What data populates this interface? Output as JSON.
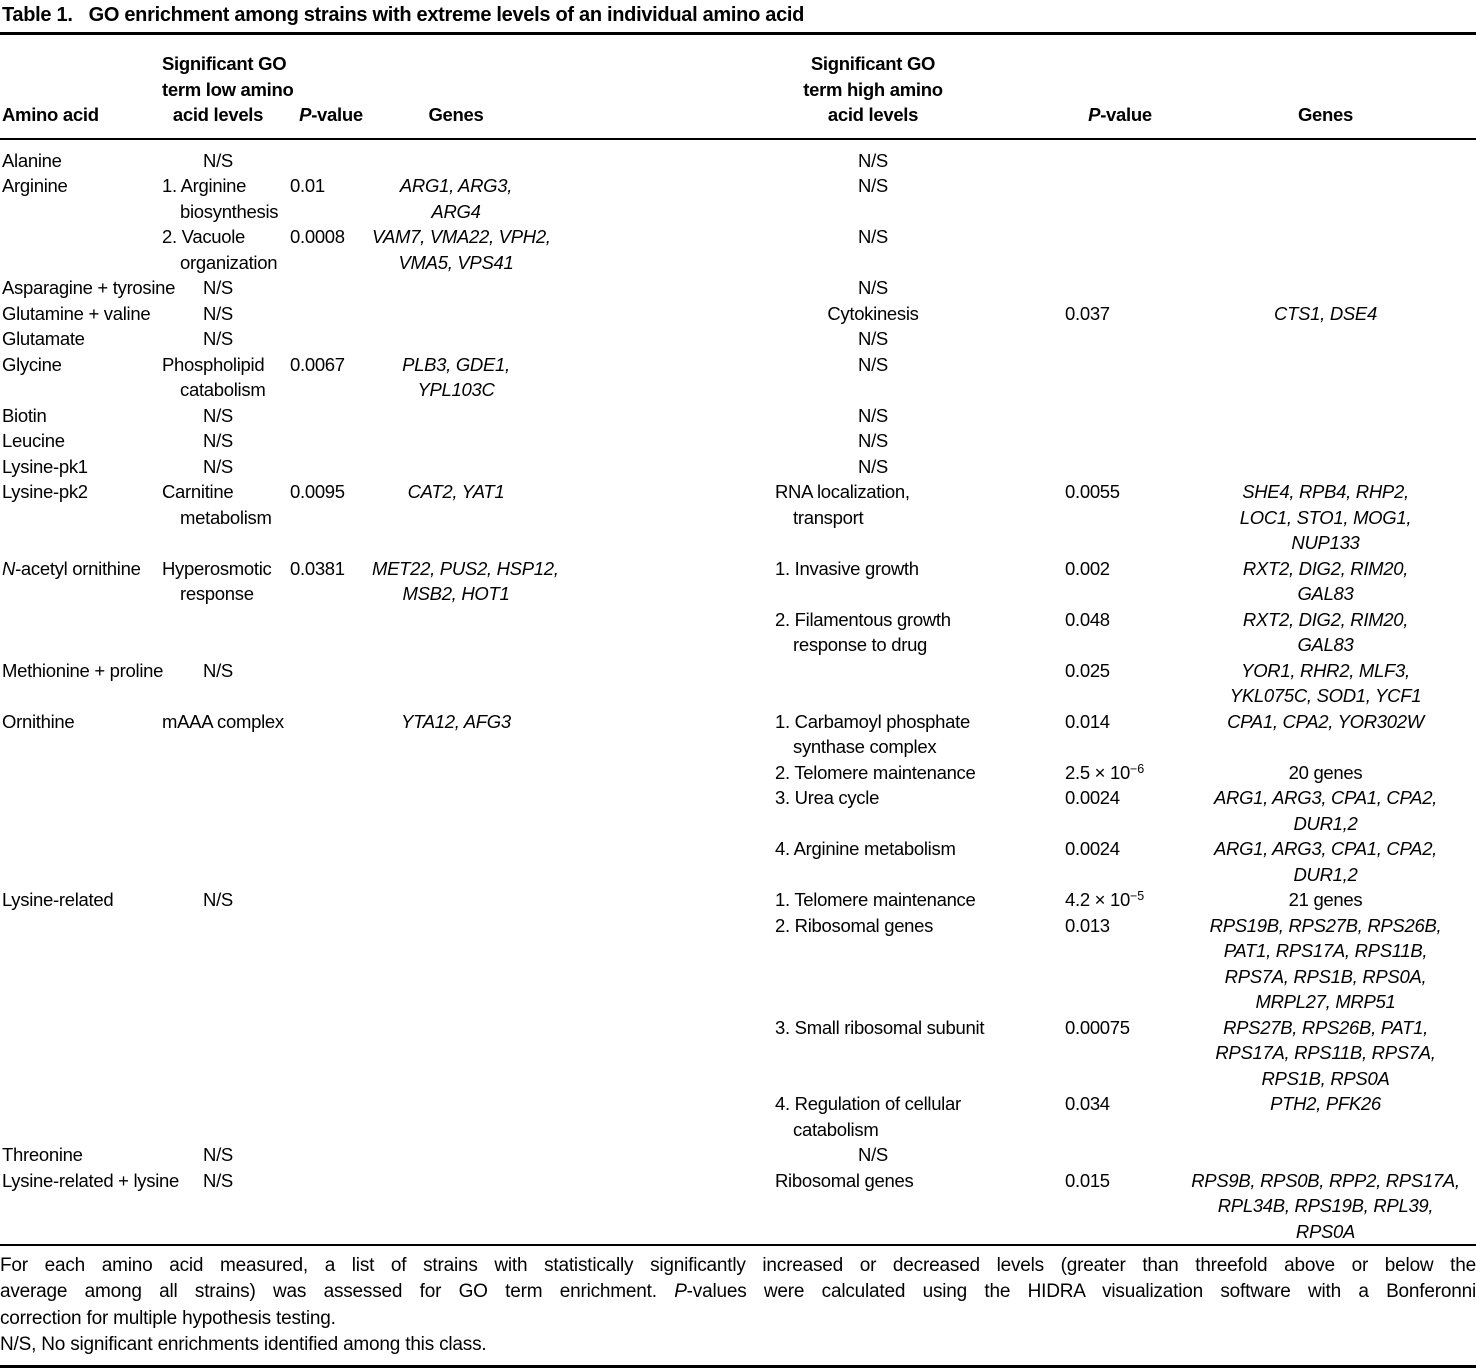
{
  "title": {
    "label": "Table 1.",
    "text": "GO enrichment among strains with extreme levels of an individual amino acid"
  },
  "header": {
    "amino_label": "Amino acid",
    "go_low": [
      "Significant GO",
      "term low amino",
      "acid levels"
    ],
    "go_high": [
      "Significant GO",
      "term high amino",
      "acid levels"
    ],
    "p_italic": "P",
    "p_suffix": "-value",
    "genes_label": "Genes"
  },
  "rows": [
    {
      "amino": "Alanine",
      "low": {
        "term_lines": [
          "N/S"
        ],
        "align": "center"
      },
      "high": {
        "term_lines": [
          "N/S"
        ],
        "align": "center"
      }
    },
    {
      "amino": "Arginine",
      "low": {
        "term_lines": [
          "1. Arginine",
          "biosynthesis"
        ],
        "align": "left",
        "p_value": "0.01",
        "genes_lines": [
          "ARG1, ARG3,",
          "ARG4"
        ]
      },
      "high": {
        "term_lines": [
          "N/S"
        ],
        "align": "center"
      }
    },
    {
      "amino": "",
      "low": {
        "term_lines": [
          "2. Vacuole",
          "organization"
        ],
        "align": "left",
        "p_value": "0.0008",
        "genes_lines": [
          "VAM7, VMA22, VPH2,",
          "VMA5, VPS41"
        ]
      },
      "high": {
        "term_lines": [
          "N/S"
        ],
        "align": "center"
      }
    },
    {
      "amino": "Asparagine + tyrosine",
      "low": {
        "term_lines": [
          "N/S"
        ],
        "align": "center"
      },
      "high": {
        "term_lines": [
          "N/S"
        ],
        "align": "center"
      }
    },
    {
      "amino": "Glutamine + valine",
      "low": {
        "term_lines": [
          "N/S"
        ],
        "align": "center"
      },
      "high": {
        "term_lines": [
          "Cytokinesis"
        ],
        "align": "center",
        "p_value": "0.037",
        "genes_lines": [
          "CTS1, DSE4"
        ]
      }
    },
    {
      "amino": "Glutamate",
      "low": {
        "term_lines": [
          "N/S"
        ],
        "align": "center"
      },
      "high": {
        "term_lines": [
          "N/S"
        ],
        "align": "center"
      }
    },
    {
      "amino": "Glycine",
      "low": {
        "term_lines": [
          "Phospholipid",
          "catabolism"
        ],
        "align": "left",
        "p_value": "0.0067",
        "genes_lines": [
          "PLB3, GDE1,",
          "YPL103C"
        ]
      },
      "high": {
        "term_lines": [
          "N/S"
        ],
        "align": "center"
      }
    },
    {
      "amino": "Biotin",
      "low": {
        "term_lines": [
          "N/S"
        ],
        "align": "center"
      },
      "high": {
        "term_lines": [
          "N/S"
        ],
        "align": "center"
      }
    },
    {
      "amino": "Leucine",
      "low": {
        "term_lines": [
          "N/S"
        ],
        "align": "center"
      },
      "high": {
        "term_lines": [
          "N/S"
        ],
        "align": "center"
      }
    },
    {
      "amino": "Lysine-pk1",
      "low": {
        "term_lines": [
          "N/S"
        ],
        "align": "center"
      },
      "high": {
        "term_lines": [
          "N/S"
        ],
        "align": "center"
      }
    },
    {
      "amino": "Lysine-pk2",
      "low": {
        "term_lines": [
          "Carnitine",
          "metabolism"
        ],
        "align": "left",
        "p_value": "0.0095",
        "genes_lines": [
          "CAT2, YAT1"
        ]
      },
      "high": {
        "term_lines": [
          "RNA localization,",
          "transport"
        ],
        "align": "left",
        "p_value": "0.0055",
        "genes_lines": [
          "SHE4, RPB4, RHP2,",
          "LOC1, STO1, MOG1,",
          "NUP133"
        ]
      }
    },
    {
      "amino": {
        "italic_prefix": "N",
        "text": "-acetyl ornithine"
      },
      "low": {
        "term_lines": [
          "Hyperosmotic",
          "response"
        ],
        "align": "left",
        "p_value": "0.0381",
        "genes_lines": [
          "MET22, PUS2, HSP12,",
          "MSB2, HOT1"
        ]
      },
      "high": {
        "term_lines": [
          "1. Invasive growth"
        ],
        "align": "left",
        "p_value": "0.002",
        "genes_lines": [
          "RXT2, DIG2, RIM20,",
          "GAL83"
        ]
      }
    },
    {
      "amino": "",
      "high": {
        "term_lines": [
          "2. Filamentous growth",
          "response to drug"
        ],
        "align": "left",
        "p_value": "0.048",
        "genes_lines": [
          "RXT2, DIG2, RIM20,",
          "GAL83"
        ]
      }
    },
    {
      "amino": "Methionine + proline",
      "low": {
        "term_lines": [
          "N/S"
        ],
        "align": "center"
      },
      "high": {
        "p_value": "0.025",
        "genes_lines": [
          "YOR1, RHR2, MLF3,",
          "YKL075C, SOD1, YCF1"
        ]
      }
    },
    {
      "amino": "Ornithine",
      "low": {
        "term_lines": [
          "mAAA complex"
        ],
        "align": "left",
        "genes_lines": [
          "YTA12, AFG3"
        ]
      },
      "high": {
        "term_lines": [
          "1. Carbamoyl phosphate",
          "synthase complex"
        ],
        "align": "left",
        "p_value": "0.014",
        "genes_lines": [
          "CPA1, CPA2, YOR302W"
        ]
      }
    },
    {
      "amino": "",
      "high": {
        "term_lines": [
          "2. Telomere maintenance"
        ],
        "align": "left",
        "p_value": {
          "base": "2.5 × 10",
          "sup": "−6"
        },
        "genes_lines": [
          "20 genes"
        ],
        "genes_roman": true
      }
    },
    {
      "amino": "",
      "high": {
        "term_lines": [
          "3. Urea cycle"
        ],
        "align": "left",
        "p_value": "0.0024",
        "genes_lines": [
          "ARG1, ARG3, CPA1, CPA2,",
          "DUR1,2"
        ]
      }
    },
    {
      "amino": "",
      "high": {
        "term_lines": [
          "4. Arginine metabolism"
        ],
        "align": "left",
        "p_value": "0.0024",
        "genes_lines": [
          "ARG1, ARG3, CPA1, CPA2,",
          "DUR1,2"
        ]
      }
    },
    {
      "amino": "Lysine-related",
      "low": {
        "term_lines": [
          "N/S"
        ],
        "align": "center"
      },
      "high": {
        "term_lines": [
          "1. Telomere maintenance"
        ],
        "align": "left",
        "p_value": {
          "base": "4.2 × 10",
          "sup": "−5"
        },
        "genes_lines": [
          "21 genes"
        ],
        "genes_roman": true
      }
    },
    {
      "amino": "",
      "high": {
        "term_lines": [
          "2. Ribosomal genes"
        ],
        "align": "left",
        "p_value": "0.013",
        "genes_lines": [
          "RPS19B, RPS27B, RPS26B,",
          "PAT1, RPS17A, RPS11B,",
          "RPS7A, RPS1B, RPS0A,",
          "MRPL27, MRP51"
        ]
      }
    },
    {
      "amino": "",
      "high": {
        "term_lines": [
          "3. Small ribosomal subunit"
        ],
        "align": "left",
        "p_value": "0.00075",
        "genes_lines": [
          "RPS27B, RPS26B, PAT1,",
          "RPS17A, RPS11B, RPS7A,",
          "RPS1B, RPS0A"
        ]
      }
    },
    {
      "amino": "",
      "high": {
        "term_lines": [
          "4. Regulation of cellular",
          "catabolism"
        ],
        "align": "left",
        "p_value": "0.034",
        "genes_lines": [
          "PTH2, PFK26"
        ]
      }
    },
    {
      "amino": "Threonine",
      "low": {
        "term_lines": [
          "N/S"
        ],
        "align": "center"
      },
      "high": {
        "term_lines": [
          "N/S"
        ],
        "align": "center"
      }
    },
    {
      "amino": "Lysine-related + lysine",
      "low": {
        "term_lines": [
          "N/S"
        ],
        "align": "center"
      },
      "high": {
        "term_lines": [
          "Ribosomal genes"
        ],
        "align": "left",
        "p_value": "0.015",
        "genes_lines": [
          "RPS9B, RPS0B, RPP2, RPS17A,",
          "RPL34B, RPS19B, RPL39,",
          "RPS0A"
        ]
      }
    }
  ],
  "footnote": {
    "lines": [
      [
        {
          "text": "For each amino acid measured, a list of strains with statistically significantly increased or decreased levels (greater than threefold above or below the"
        }
      ],
      [
        {
          "text": "average among all strains) was assessed for GO term enrichment. "
        },
        {
          "text": "P",
          "italic": true
        },
        {
          "text": "-values were calculated using the HIDRA visualization software with a Bonferonni"
        }
      ],
      [
        {
          "text": "correction for multiple hypothesis testing."
        }
      ],
      [
        {
          "text": "N/S, No significant enrichments identified among this class."
        }
      ]
    ]
  }
}
